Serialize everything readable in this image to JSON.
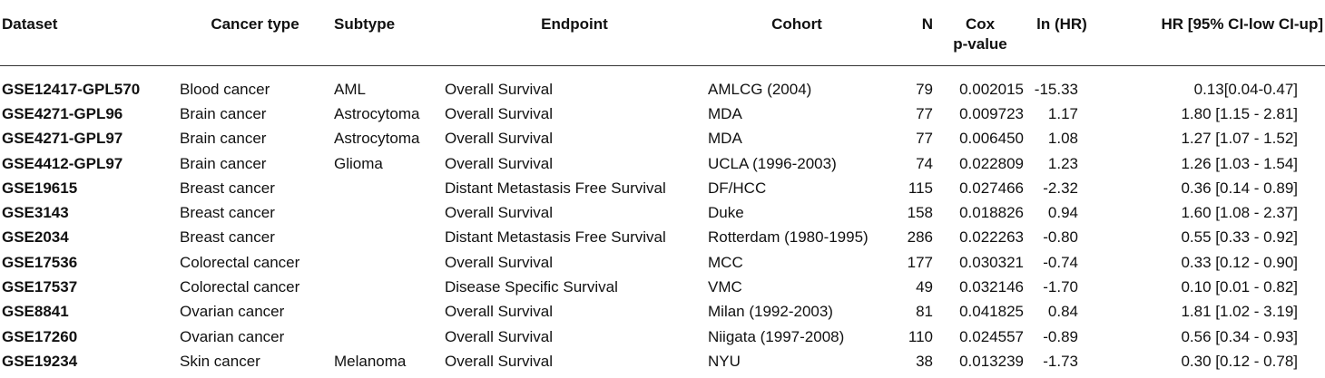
{
  "headers": {
    "dataset": "Dataset",
    "cancer_type": "Cancer type",
    "subtype": "Subtype",
    "endpoint": "Endpoint",
    "cohort": "Cohort",
    "n": "N",
    "cox_line1": "Cox",
    "cox_line2": "p-value",
    "ln_hr": "ln (HR)",
    "hr_ci": "HR [95% CI-low CI-up]"
  },
  "rows": [
    {
      "dataset": "GSE12417-GPL570",
      "cancer_type": "Blood cancer",
      "subtype": "AML",
      "endpoint": "Overall Survival",
      "cohort": "AMLCG (2004)",
      "n": "79",
      "p": "0.002015",
      "ln_hr": "-15.33",
      "hr": "0.13[0.04-0.47]"
    },
    {
      "dataset": "GSE4271-GPL96",
      "cancer_type": "Brain cancer",
      "subtype": "Astrocytoma",
      "endpoint": "Overall Survival",
      "cohort": "MDA",
      "n": "77",
      "p": "0.009723",
      "ln_hr": "1.17",
      "hr": "1.80 [1.15 - 2.81]"
    },
    {
      "dataset": "GSE4271-GPL97",
      "cancer_type": "Brain cancer",
      "subtype": "Astrocytoma",
      "endpoint": "Overall Survival",
      "cohort": "MDA",
      "n": "77",
      "p": "0.006450",
      "ln_hr": "1.08",
      "hr": "1.27 [1.07 - 1.52]"
    },
    {
      "dataset": "GSE4412-GPL97",
      "cancer_type": "Brain cancer",
      "subtype": "Glioma",
      "endpoint": "Overall Survival",
      "cohort": "UCLA (1996-2003)",
      "n": "74",
      "p": "0.022809",
      "ln_hr": "1.23",
      "hr": "1.26 [1.03 - 1.54]"
    },
    {
      "dataset": "GSE19615",
      "cancer_type": "Breast cancer",
      "subtype": "",
      "endpoint": "Distant Metastasis Free Survival",
      "cohort": "DF/HCC",
      "n": "115",
      "p": "0.027466",
      "ln_hr": "-2.32",
      "hr": "0.36 [0.14 - 0.89]"
    },
    {
      "dataset": "GSE3143",
      "cancer_type": "Breast cancer",
      "subtype": "",
      "endpoint": "Overall Survival",
      "cohort": "Duke",
      "n": "158",
      "p": "0.018826",
      "ln_hr": "0.94",
      "hr": "1.60 [1.08 - 2.37]"
    },
    {
      "dataset": "GSE2034",
      "cancer_type": "Breast cancer",
      "subtype": "",
      "endpoint": "Distant Metastasis Free Survival",
      "cohort": "Rotterdam (1980-1995)",
      "n": "286",
      "p": "0.022263",
      "ln_hr": "-0.80",
      "hr": "0.55 [0.33 - 0.92]"
    },
    {
      "dataset": "GSE17536",
      "cancer_type": "Colorectal cancer",
      "subtype": "",
      "endpoint": "Overall Survival",
      "cohort": "MCC",
      "n": "177",
      "p": "0.030321",
      "ln_hr": "-0.74",
      "hr": "0.33 [0.12 - 0.90]"
    },
    {
      "dataset": "GSE17537",
      "cancer_type": "Colorectal cancer",
      "subtype": "",
      "endpoint": "Disease Specific Survival",
      "cohort": "VMC",
      "n": "49",
      "p": "0.032146",
      "ln_hr": "-1.70",
      "hr": "0.10 [0.01 - 0.82]"
    },
    {
      "dataset": "GSE8841",
      "cancer_type": "Ovarian cancer",
      "subtype": "",
      "endpoint": "Overall Survival",
      "cohort": "Milan (1992-2003)",
      "n": "81",
      "p": "0.041825",
      "ln_hr": "0.84",
      "hr": "1.81 [1.02 - 3.19]"
    },
    {
      "dataset": "GSE17260",
      "cancer_type": "Ovarian cancer",
      "subtype": "",
      "endpoint": "Overall Survival",
      "cohort": "Niigata (1997-2008)",
      "n": "110",
      "p": "0.024557",
      "ln_hr": "-0.89",
      "hr": "0.56 [0.34 - 0.93]"
    },
    {
      "dataset": "GSE19234",
      "cancer_type": "Skin cancer",
      "subtype": "Melanoma",
      "endpoint": "Overall Survival",
      "cohort": "NYU",
      "n": "38",
      "p": "0.013239",
      "ln_hr": "-1.73",
      "hr": "0.30 [0.12 - 0.78]"
    }
  ]
}
